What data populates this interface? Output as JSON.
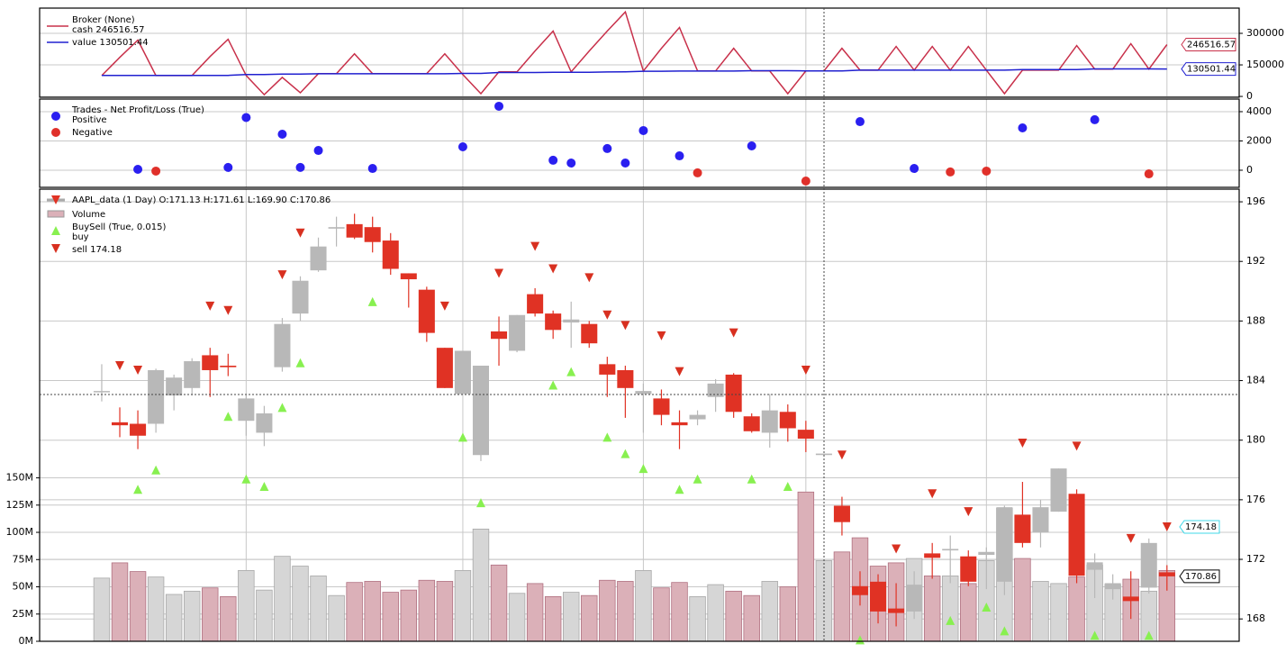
{
  "chart_data": [
    {
      "type": "line",
      "title": "Broker (None)",
      "ylim": [
        -4000,
        420000
      ],
      "yticks": [
        0,
        150000,
        300000
      ],
      "xlim": [
        -3.44,
        63.0
      ],
      "xticks": [
        8,
        20,
        30,
        39,
        49,
        59
      ],
      "grid": true,
      "series": [
        {
          "name": "cash 246516.57",
          "color": "#c8304a",
          "values": [
            99400,
            185900,
            268000,
            99400,
            99400,
            99400,
            190000,
            272000,
            99400,
            8600,
            90800,
            17300,
            108000,
            108000,
            203000,
            108000,
            108000,
            108000,
            108000,
            203000,
            103800,
            13000,
            116700,
            116700,
            216000,
            311000,
            116700,
            216000,
            311000,
            402000,
            121000,
            229000,
            328000,
            121000,
            121000,
            229000,
            121000,
            121000,
            13000,
            121000,
            121000,
            229000,
            125000,
            125000,
            237700,
            125000,
            237700,
            125000,
            237700,
            125000,
            13000,
            125000,
            125000,
            125000,
            242000,
            130000,
            130000,
            250700,
            130000,
            246516.57
          ]
        },
        {
          "name": "value 130501.44",
          "color": "#2020d0",
          "values": [
            100000,
            100000,
            100060,
            100000,
            100000,
            100000,
            100000,
            100190,
            103790,
            103790,
            106250,
            106440,
            107790,
            107790,
            107790,
            107910,
            107910,
            107910,
            107910,
            107910,
            109510,
            109510,
            113880,
            113880,
            113880,
            114560,
            115050,
            115050,
            116530,
            117020,
            119730,
            119730,
            120710,
            120530,
            120530,
            120530,
            122190,
            122190,
            122190,
            121450,
            121450,
            121450,
            124770,
            124770,
            124770,
            124890,
            124890,
            124770,
            124770,
            124710,
            124710,
            127600,
            127600,
            127600,
            127600,
            131050,
            131050,
            131050,
            130800,
            130501.44
          ]
        }
      ]
    },
    {
      "type": "scatter",
      "title": "Trades - Net Profit/Loss (True)",
      "ylim": [
        -1170,
        4860
      ],
      "yticks": [
        0,
        2000,
        4000
      ],
      "xlim": [
        -3.44,
        63.0
      ],
      "xticks": [
        8,
        20,
        30,
        39,
        49,
        59
      ],
      "grid": true,
      "series": [
        {
          "name": "Positive",
          "color": "#2a1ff0",
          "values": [
            null,
            null,
            60,
            null,
            null,
            null,
            null,
            190,
            3600,
            null,
            2460,
            190,
            1350,
            null,
            null,
            120,
            null,
            null,
            null,
            null,
            1600,
            null,
            4370,
            null,
            null,
            680,
            490,
            null,
            1480,
            490,
            2710,
            null,
            980,
            null,
            null,
            null,
            1660,
            null,
            null,
            null,
            null,
            null,
            3320,
            null,
            null,
            120,
            null,
            null,
            null,
            null,
            null,
            2890,
            null,
            null,
            null,
            3450,
            null,
            null,
            null,
            null
          ]
        },
        {
          "name": "Negative",
          "color": "#e0302a",
          "values": [
            null,
            null,
            null,
            -60,
            null,
            null,
            null,
            null,
            null,
            null,
            null,
            null,
            null,
            null,
            null,
            null,
            null,
            null,
            null,
            null,
            null,
            null,
            null,
            null,
            null,
            null,
            null,
            null,
            null,
            null,
            null,
            null,
            null,
            -180,
            null,
            null,
            null,
            null,
            null,
            -740,
            null,
            null,
            null,
            null,
            null,
            null,
            null,
            -120,
            null,
            -60,
            null,
            null,
            null,
            null,
            null,
            null,
            null,
            null,
            -250,
            null
          ]
        }
      ]
    },
    {
      "type": "candlestick",
      "title": "AAPL_data (1 Day) O:171.13 H:171.61 L:169.90 C:170.86",
      "volume_name": "Volume",
      "signals_title": "BuySell (True, 0.015)",
      "ylim": [
        166.5,
        196.85
      ],
      "yticks": [
        168,
        172,
        176,
        180,
        184,
        188,
        192,
        196
      ],
      "y2lim": [
        0,
        415000000
      ],
      "y2ticks": [
        {
          "value": 0,
          "label": "0M"
        },
        {
          "value": 25000000,
          "label": "25M"
        },
        {
          "value": 50000000,
          "label": "50M"
        },
        {
          "value": 75000000,
          "label": "75M"
        },
        {
          "value": 100000000,
          "label": "100M"
        },
        {
          "value": 125000000,
          "label": "125M"
        },
        {
          "value": 150000000,
          "label": "150M"
        }
      ],
      "xlim": [
        -3.44,
        63.0
      ],
      "xticks": [
        8,
        20,
        30,
        39,
        49,
        59
      ],
      "grid": true,
      "up_color": "#b8b8b8",
      "down_color": "#e03224",
      "volume_up_color": "#d6d6d6",
      "volume_down_color": "#dbb0b8",
      "open": [
        183.3,
        181.2,
        181.1,
        181.1,
        183.0,
        183.5,
        185.7,
        185.0,
        181.3,
        180.5,
        184.9,
        188.5,
        191.4,
        194.2,
        194.5,
        194.3,
        193.4,
        191.2,
        190.1,
        186.2,
        183.1,
        179.0,
        187.3,
        186.0,
        189.8,
        188.5,
        187.9,
        187.8,
        185.1,
        184.7,
        183.1,
        182.8,
        181.2,
        181.4,
        182.9,
        184.4,
        181.6,
        180.5,
        181.9,
        180.7,
        179.0,
        175.6,
        170.2,
        170.5,
        168.7,
        168.5,
        172.4,
        172.6,
        172.2,
        172.3,
        170.5,
        175.0,
        173.8,
        175.2,
        176.4,
        171.3,
        170.0,
        169.5,
        170.1,
        171.13
      ],
      "high": [
        185.1,
        182.2,
        182.0,
        184.8,
        184.4,
        185.5,
        186.2,
        185.8,
        183.0,
        182.3,
        188.2,
        191.0,
        193.6,
        195.0,
        195.2,
        195.0,
        193.9,
        191.2,
        190.3,
        186.2,
        186.0,
        185.0,
        188.3,
        188.4,
        190.2,
        188.7,
        189.3,
        188.0,
        185.6,
        185.0,
        183.8,
        183.4,
        182.0,
        182.0,
        184.1,
        184.5,
        181.8,
        183.1,
        182.4,
        181.3,
        179.1,
        176.2,
        171.2,
        171.0,
        170.4,
        171.2,
        173.1,
        173.6,
        172.6,
        172.8,
        175.6,
        177.2,
        176.0,
        178.1,
        176.7,
        172.4,
        171.0,
        171.2,
        173.4,
        171.61
      ],
      "low": [
        182.6,
        180.2,
        179.4,
        180.5,
        182.0,
        183.0,
        182.9,
        184.3,
        180.3,
        179.6,
        184.6,
        188.0,
        191.3,
        193.0,
        193.5,
        192.6,
        191.1,
        188.9,
        186.6,
        183.5,
        183.1,
        178.6,
        185.0,
        185.9,
        188.3,
        186.8,
        186.2,
        186.2,
        182.9,
        181.5,
        180.5,
        181.0,
        179.4,
        181.0,
        181.9,
        181.5,
        180.5,
        179.5,
        179.9,
        179.2,
        179.0,
        173.6,
        168.9,
        167.7,
        167.5,
        168.0,
        170.7,
        170.4,
        170.2,
        170.0,
        169.6,
        172.8,
        172.8,
        175.2,
        170.4,
        169.4,
        169.3,
        168.0,
        169.7,
        169.9
      ],
      "close": [
        183.3,
        181.0,
        180.3,
        184.7,
        184.2,
        185.3,
        184.7,
        184.9,
        182.8,
        181.8,
        187.8,
        190.7,
        193.0,
        194.3,
        193.6,
        193.3,
        191.5,
        190.8,
        187.2,
        183.5,
        186.0,
        185.0,
        186.8,
        188.4,
        188.5,
        187.4,
        188.1,
        186.5,
        184.4,
        183.5,
        183.3,
        181.7,
        181.0,
        181.7,
        183.8,
        181.9,
        180.6,
        182.0,
        180.8,
        180.1,
        179.1,
        174.5,
        169.6,
        168.5,
        168.4,
        170.3,
        172.1,
        172.7,
        170.5,
        172.5,
        175.5,
        173.1,
        175.5,
        178.1,
        170.9,
        171.8,
        170.4,
        169.2,
        173.1,
        170.86
      ],
      "volume": [
        58000000,
        72000000,
        64000000,
        59000000,
        43000000,
        46000000,
        49000000,
        41000000,
        65000000,
        47000000,
        78000000,
        69000000,
        60000000,
        42000000,
        54000000,
        55000000,
        45000000,
        47000000,
        56000000,
        55000000,
        65000000,
        103000000,
        70000000,
        44000000,
        53000000,
        41000000,
        45000000,
        42000000,
        56000000,
        55000000,
        65000000,
        49000000,
        54000000,
        41000000,
        52000000,
        46000000,
        42000000,
        55000000,
        50000000,
        137000000,
        74000000,
        82000000,
        95000000,
        69000000,
        72000000,
        76000000,
        60000000,
        60000000,
        53000000,
        74000000,
        122000000,
        76000000,
        55000000,
        53000000,
        59000000,
        70000000,
        52000000,
        57000000,
        46000000,
        65000000
      ],
      "series": [
        {
          "name": "buy",
          "color": "#88f050",
          "values": [
            null,
            null,
            176.7,
            178.0,
            null,
            null,
            null,
            181.6,
            177.4,
            176.9,
            182.2,
            185.2,
            null,
            null,
            null,
            189.3,
            null,
            null,
            null,
            null,
            180.2,
            175.8,
            null,
            null,
            null,
            183.7,
            184.6,
            null,
            180.2,
            179.1,
            178.1,
            null,
            176.7,
            177.4,
            null,
            null,
            177.4,
            null,
            176.9,
            null,
            null,
            null,
            166.6,
            null,
            null,
            null,
            null,
            167.9,
            null,
            168.8,
            167.2,
            null,
            null,
            null,
            null,
            166.9,
            null,
            null,
            166.9,
            null
          ]
        },
        {
          "name": "sell 174.18",
          "color": "#d83020",
          "values": [
            null,
            185.0,
            184.7,
            null,
            null,
            null,
            189.0,
            188.7,
            null,
            null,
            191.1,
            193.9,
            null,
            null,
            null,
            null,
            null,
            null,
            null,
            189.0,
            null,
            null,
            191.2,
            null,
            193.0,
            191.5,
            null,
            190.9,
            188.4,
            187.7,
            null,
            187.0,
            184.6,
            null,
            null,
            187.2,
            null,
            null,
            null,
            184.7,
            null,
            179.0,
            null,
            null,
            172.7,
            null,
            176.4,
            null,
            175.2,
            null,
            null,
            179.8,
            null,
            null,
            179.6,
            null,
            null,
            173.4,
            null,
            174.18
          ]
        }
      ]
    }
  ]
}
